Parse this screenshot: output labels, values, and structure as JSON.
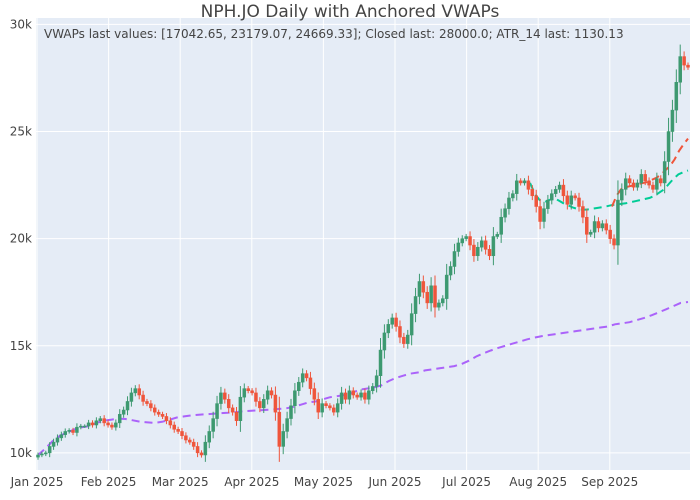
{
  "chart_data": {
    "type": "candlestick",
    "title": "NPH.JO Daily with Anchored VWAPs",
    "annotation": "VWAPs last values: [17042.65, 23179.07, 24669.33]; Closed last: 28000.0; ATR_14 last: 1130.13",
    "xlabel": "",
    "ylabel": "",
    "x_ticks": [
      "Jan 2025",
      "Feb 2025",
      "Mar 2025",
      "Apr 2025",
      "May 2025",
      "Jun 2025",
      "Jul 2025",
      "Aug 2025",
      "Sep 2025"
    ],
    "y_ticks": [
      "10k",
      "15k",
      "20k",
      "25k",
      "30k"
    ],
    "ylim": [
      9200,
      30300
    ],
    "grid": true,
    "colors": {
      "up": "#3d9970",
      "down": "#ef553b",
      "vwap1": "#ab63fa",
      "vwap2": "#00cc96",
      "vwap3": "#ef553b",
      "plot_bg": "#e5ecf6"
    },
    "candles_close": [
      [
        9900,
        9950,
        10000,
        10300,
        10500,
        10700,
        10850,
        11000,
        11050,
        10950,
        11200,
        11250,
        11250,
        11400,
        11300,
        11500,
        11600,
        11400,
        11300,
        11200,
        11400,
        11800,
        12000,
        12400,
        12800,
        13000,
        12700,
        12400,
        12300,
        12100,
        11900,
        11800,
        11700,
        11500,
        11300,
        11100,
        11000,
        10800,
        10600,
        10500,
        10300,
        10000,
        9900,
        10500,
        11000,
        11600,
        12300,
        12800,
        12500,
        12100,
        11900,
        11500,
        12600,
        13000,
        12900,
        12800,
        12400,
        12100,
        12500,
        12900,
        12700,
        11900,
        10300,
        11000,
        11600,
        12200,
        12900,
        13300,
        13700,
        13500,
        13000,
        12500,
        11900,
        12300,
        12200,
        12100,
        11900,
        12300,
        12800,
        12500,
        12900,
        12700,
        12600,
        12800,
        12500,
        12900,
        13100,
        13600,
        14800,
        15600,
        16000,
        16300,
        15900,
        15400,
        15100,
        15500,
        16500,
        17300,
        18000,
        17500,
        17000,
        17800,
        16800,
        17000,
        17200,
        18300,
        18700,
        19400,
        19800,
        20000,
        20100,
        19700,
        19200,
        19600,
        19900,
        19500,
        19200,
        20100,
        20200,
        21000,
        21400,
        21900,
        22100,
        22700,
        22600,
        22700,
        22300,
        22000,
        21500,
        20800,
        21400,
        21800,
        22100,
        22300,
        22500,
        22000,
        21600,
        22000,
        21900,
        21500,
        21000,
        20200,
        20300,
        20800,
        20500,
        20700,
        20400,
        20000,
        19700,
        21800,
        22300,
        22800,
        22600,
        22400,
        22600,
        23000,
        22700,
        22500,
        22300,
        22800,
        22600,
        23600,
        25000,
        26000,
        27300,
        28500,
        28100,
        28000
      ]
    ],
    "vwap_anchored_jan": [
      [
        9900,
        10200,
        10550,
        10800,
        10950,
        11100,
        11200,
        11250,
        11400,
        11500,
        11550,
        11600,
        11580,
        11520,
        11450,
        11420,
        11400,
        11450,
        11550,
        11650,
        11700,
        11750,
        11780,
        11800,
        11830,
        11850,
        11870,
        11900,
        11940,
        11960,
        11980,
        12000,
        12020,
        12050,
        12080,
        12150,
        12250,
        12350,
        12400,
        12500,
        12600,
        12650,
        12700,
        12800,
        12950,
        13000,
        13050,
        13150,
        13350,
        13500,
        13600,
        13700,
        13750,
        13850,
        13900,
        13950,
        14000,
        14050,
        14150,
        14300,
        14500,
        14650,
        14780,
        14900,
        15000,
        15100,
        15200,
        15300,
        15380,
        15450,
        15500,
        15550,
        15600,
        15650,
        15700,
        15750,
        15800,
        15850,
        15900,
        16000,
        16050,
        16100,
        16200,
        16300,
        16420,
        16560,
        16700,
        16850,
        17000,
        17043
      ]
    ],
    "vwap_anchored_aug": [
      [
        22600,
        22100,
        21800,
        21700,
        21800,
        21900,
        21780,
        21650,
        21550,
        21450,
        21380,
        21350,
        21360,
        21400,
        21430,
        21470,
        21510,
        21560,
        21600,
        21620,
        21650,
        21700,
        21750,
        21800,
        21850,
        21900,
        22000,
        22150,
        22300,
        22550,
        22800,
        23000,
        23100,
        23179
      ]
    ],
    "vwap_anchored_sep": [
      [
        21500,
        22000,
        22300,
        22400,
        22450,
        22500,
        22550,
        22600,
        22650,
        22750,
        22850,
        23000,
        23200,
        23400,
        23700,
        24100,
        24400,
        24669
      ]
    ]
  }
}
